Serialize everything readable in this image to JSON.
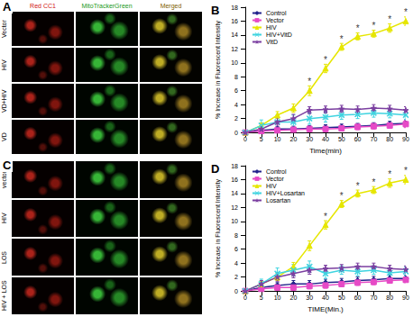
{
  "panels": [
    {
      "label": "A",
      "columns": [
        "Red CC1",
        "MitoTrackerGreen",
        "Merged"
      ],
      "rows": [
        "Vector",
        "HIV",
        "VD+HIV",
        "VD"
      ]
    },
    {
      "label": "C",
      "rows": [
        "vector",
        "HIV",
        "LOS",
        "HIV + LOS"
      ]
    }
  ],
  "chart_data": [
    {
      "type": "line",
      "title": "B",
      "x_label": "Time(min)",
      "y_label": "% Increase in Fluorescent Intensity",
      "categories": [
        "0",
        "5",
        "10",
        "20",
        "30",
        "40",
        "50",
        "60",
        "70",
        "80",
        "90"
      ],
      "ylim": [
        0,
        18
      ],
      "yticks": [
        0,
        2,
        4,
        6,
        8,
        10,
        12,
        14,
        16,
        18
      ],
      "grid": false,
      "legend": "upper left",
      "series": [
        {
          "name": "Control",
          "color": "#23238c",
          "marker": "diamond",
          "values": [
            0,
            0.3,
            0.5,
            0.5,
            0.6,
            0.7,
            0.8,
            0.9,
            1.0,
            1.2,
            1.3
          ],
          "errors": [
            0,
            0.3,
            0.3,
            0.4,
            0.4,
            0.4,
            0.4,
            0.4,
            0.4,
            0.4,
            0.4
          ]
        },
        {
          "name": "Vector",
          "color": "#e64ac6",
          "marker": "square",
          "values": [
            0,
            0.2,
            0.3,
            0.4,
            0.5,
            0.5,
            0.6,
            0.8,
            0.9,
            1.0,
            1.2
          ],
          "errors": [
            0,
            0.3,
            0.3,
            0.3,
            0.4,
            0.4,
            0.4,
            0.4,
            0.4,
            0.4,
            0.5
          ]
        },
        {
          "name": "HIV",
          "color": "#e6e600",
          "marker": "triangle",
          "values": [
            0,
            1.0,
            2.5,
            3.5,
            6.0,
            9.2,
            12.3,
            13.8,
            14.2,
            15.0,
            16.0
          ],
          "errors": [
            0,
            0.4,
            0.5,
            0.6,
            0.7,
            0.6,
            0.5,
            0.5,
            0.5,
            0.6,
            0.6
          ]
        },
        {
          "name": "HIV+VitD",
          "color": "#3fd4e0",
          "marker": "x",
          "values": [
            0,
            1.0,
            1.5,
            1.5,
            2.0,
            2.2,
            2.5,
            2.6,
            2.8,
            2.7,
            2.5
          ],
          "errors": [
            0,
            0.8,
            1.0,
            1.0,
            0.8,
            0.7,
            0.6,
            0.6,
            0.6,
            0.6,
            0.6
          ]
        },
        {
          "name": "VitD",
          "color": "#7b3fa0",
          "marker": "star",
          "values": [
            0,
            0.5,
            1.5,
            2.0,
            3.2,
            3.3,
            3.4,
            3.3,
            3.5,
            3.4,
            3.2
          ],
          "errors": [
            0,
            0.5,
            0.6,
            0.6,
            0.5,
            0.5,
            0.5,
            0.5,
            0.5,
            0.5,
            0.5
          ]
        }
      ],
      "significance": {
        "label": "*",
        "series": "HIV",
        "categories": [
          "30",
          "40",
          "50",
          "60",
          "70",
          "80",
          "90"
        ]
      }
    },
    {
      "type": "line",
      "title": "D",
      "x_label": "TIME(Min.)",
      "y_label": "% Increase in Fluorescent Intensity",
      "categories": [
        "0",
        "5",
        "10",
        "20",
        "30",
        "40",
        "50",
        "60",
        "70",
        "80",
        "90"
      ],
      "ylim": [
        0,
        18
      ],
      "yticks": [
        0,
        2,
        4,
        6,
        8,
        10,
        12,
        14,
        16,
        18
      ],
      "grid": false,
      "legend": "upper left",
      "series": [
        {
          "name": "Control",
          "color": "#23238c",
          "marker": "diamond",
          "values": [
            0,
            0.5,
            0.8,
            1.0,
            1.0,
            1.2,
            1.3,
            1.5,
            1.6,
            1.8,
            1.8
          ],
          "errors": [
            0,
            0.4,
            0.4,
            0.5,
            0.5,
            0.5,
            0.5,
            0.5,
            0.5,
            0.5,
            0.5
          ]
        },
        {
          "name": "Vector",
          "color": "#e64ac6",
          "marker": "square",
          "values": [
            0,
            0.3,
            0.5,
            0.5,
            0.7,
            0.8,
            1.0,
            1.2,
            1.3,
            1.5,
            1.6
          ],
          "errors": [
            0,
            0.3,
            0.4,
            0.4,
            0.4,
            0.4,
            0.4,
            0.4,
            0.4,
            0.4,
            0.4
          ]
        },
        {
          "name": "HIV",
          "color": "#e6e600",
          "marker": "triangle",
          "values": [
            0,
            1.0,
            2.0,
            3.5,
            6.5,
            9.5,
            12.5,
            14.0,
            14.5,
            15.5,
            16.0
          ],
          "errors": [
            0,
            0.4,
            0.5,
            0.6,
            0.7,
            0.6,
            0.5,
            0.5,
            0.5,
            0.6,
            0.6
          ]
        },
        {
          "name": "HIV+Losartan",
          "color": "#3fd4e0",
          "marker": "x",
          "values": [
            0,
            1.0,
            2.5,
            3.0,
            3.5,
            2.5,
            3.0,
            2.8,
            3.0,
            2.6,
            2.8
          ],
          "errors": [
            0,
            0.7,
            0.8,
            0.8,
            0.8,
            0.7,
            0.6,
            0.6,
            0.6,
            0.6,
            0.6
          ]
        },
        {
          "name": "Losartan",
          "color": "#7b3fa0",
          "marker": "star",
          "values": [
            0,
            1.0,
            2.0,
            2.5,
            3.0,
            3.2,
            3.3,
            3.5,
            3.5,
            3.2,
            3.1
          ],
          "errors": [
            0,
            0.5,
            0.6,
            0.6,
            0.6,
            0.5,
            0.5,
            0.5,
            0.5,
            0.5,
            0.5
          ]
        }
      ],
      "significance": {
        "label": "*",
        "series": "HIV",
        "categories": [
          "40",
          "50",
          "60",
          "70",
          "80",
          "90"
        ]
      }
    }
  ]
}
